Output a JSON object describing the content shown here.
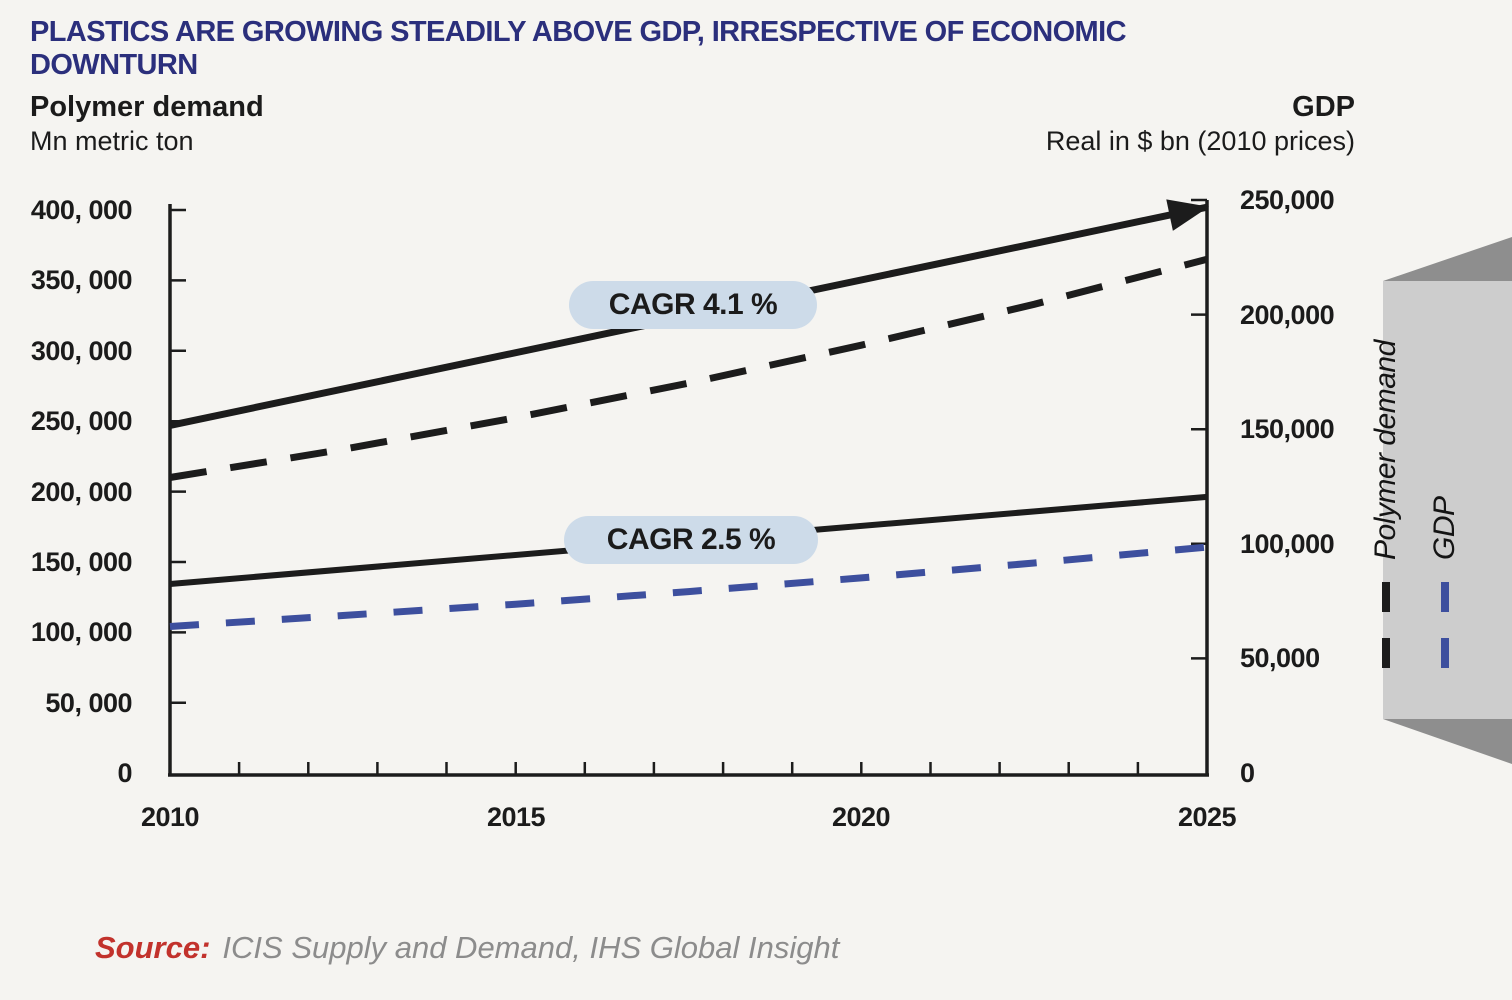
{
  "title": "PLASTICS ARE GROWING STEADILY ABOVE GDP, IRRESPECTIVE OF ECONOMIC DOWNTURN",
  "left_axis_header": {
    "title": "Polymer demand",
    "subtitle": "Mn metric ton"
  },
  "right_axis_header": {
    "title": "GDP",
    "subtitle": "Real in $ bn (2010 prices)"
  },
  "annotations": {
    "cagr_top": "CAGR 4.1 %",
    "cagr_bottom": "CAGR 2.5 %"
  },
  "legend": {
    "items": [
      {
        "label": "Polymer demand",
        "color": "#1c1c1c",
        "style": "dashed"
      },
      {
        "label": "GDP",
        "color": "#3d4f9e",
        "style": "dashed"
      }
    ]
  },
  "source": {
    "label": "Source:",
    "text": "ICIS Supply and Demand, IHS Global Insight"
  },
  "axes": {
    "left": {
      "tick_labels": [
        "400, 000",
        "350, 000",
        "300, 000",
        "250, 000",
        "200, 000",
        "150, 000",
        "100, 000",
        "50, 000",
        "0"
      ]
    },
    "right": {
      "tick_labels": [
        "250,000",
        "200,000",
        "150,000",
        "100,000",
        "50,000",
        "0"
      ]
    },
    "x": {
      "tick_labels": [
        "2010",
        "2015",
        "2020",
        "2025"
      ]
    }
  },
  "colors": {
    "background": "#f5f4f1",
    "title": "#2b2f7c",
    "line_black": "#1c1c1c",
    "line_blue": "#3d4f9e",
    "pill_bg": "#cddbe9",
    "legend_panel": "#cdcdcd",
    "legend_panel_dark": "#8e8e8e",
    "source_red": "#c2322c",
    "source_gray": "#8c8c8c"
  },
  "chart_data": {
    "type": "line",
    "title": "PLASTICS ARE GROWING STEADILY ABOVE GDP, IRRESPECTIVE OF ECONOMIC DOWNTURN",
    "x_range": [
      2010,
      2025
    ],
    "x_ticks": [
      2010,
      2015,
      2020,
      2025
    ],
    "x_minor_tick_step": 1,
    "left_axis": {
      "label": "Polymer demand, Mn metric ton",
      "range": [
        0,
        400000
      ],
      "tick_step": 50000
    },
    "right_axis": {
      "label": "GDP, Real in $ bn (2010 prices)",
      "range": [
        0,
        250000
      ],
      "tick_step": 50000
    },
    "grid": false,
    "legend_position": "right-vertical-ribbon",
    "series": [
      {
        "name": "Polymer demand trend arrow (CAGR 4.1 %)",
        "axis": "left",
        "style": "solid",
        "arrow": true,
        "color": "#1c1c1c",
        "points": [
          [
            2010,
            247000
          ],
          [
            2025,
            402000
          ]
        ]
      },
      {
        "name": "Polymer demand",
        "axis": "left",
        "style": "dashed",
        "arrow": false,
        "color": "#1c1c1c",
        "points": [
          [
            2010,
            210000
          ],
          [
            2012.5,
            230000
          ],
          [
            2015,
            252500
          ],
          [
            2017.5,
            277000
          ],
          [
            2020,
            304000
          ],
          [
            2022.5,
            333000
          ],
          [
            2025,
            365000
          ]
        ]
      },
      {
        "name": "GDP trend (CAGR 2.5 %)",
        "axis": "right",
        "style": "solid",
        "arrow": false,
        "color": "#1c1c1c",
        "points": [
          [
            2010,
            82500
          ],
          [
            2025,
            120500
          ]
        ]
      },
      {
        "name": "GDP",
        "axis": "right",
        "style": "dashed",
        "arrow": false,
        "color": "#3d4f9e",
        "points": [
          [
            2010,
            64000
          ],
          [
            2012.5,
            68800
          ],
          [
            2015,
            73700
          ],
          [
            2017.5,
            79200
          ],
          [
            2020,
            85200
          ],
          [
            2022.5,
            91700
          ],
          [
            2025,
            98600
          ]
        ]
      }
    ],
    "annotations": [
      {
        "text": "CAGR 4.1 %",
        "attached_to": "Polymer demand trend arrow"
      },
      {
        "text": "CAGR 2.5 %",
        "attached_to": "GDP trend"
      }
    ]
  }
}
